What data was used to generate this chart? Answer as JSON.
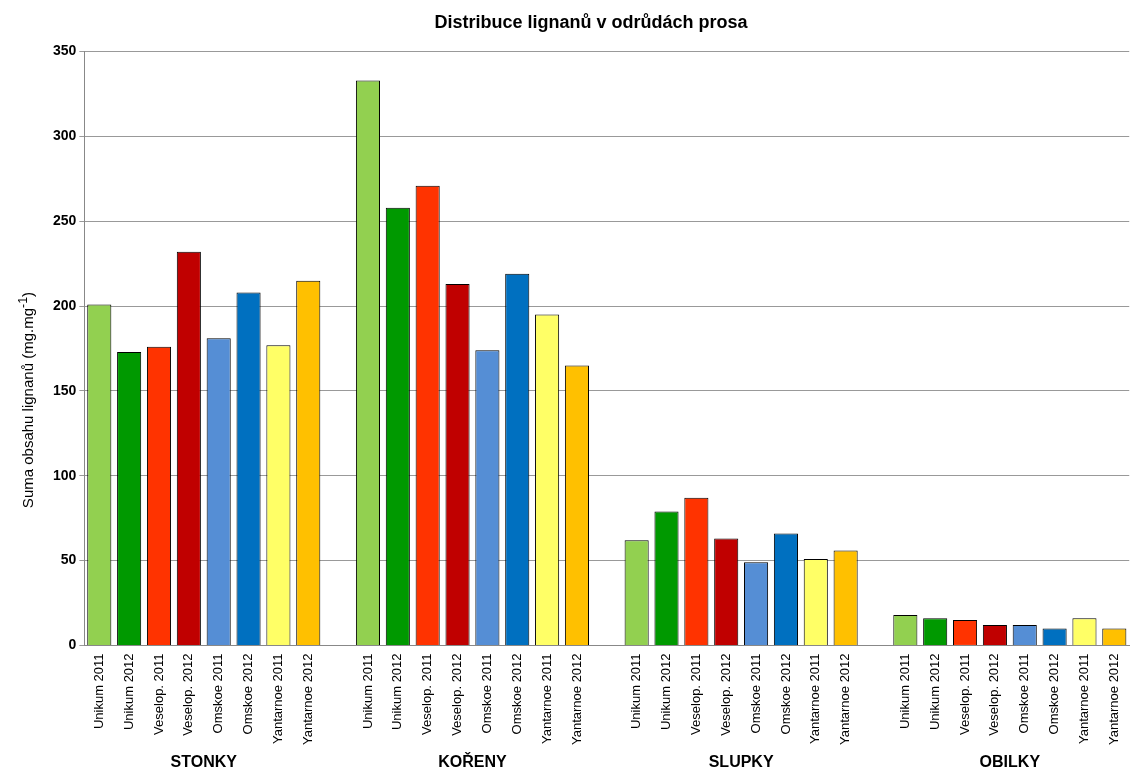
{
  "chart_data": {
    "type": "bar",
    "title": "Distribuce lignanů v odrůdách prosa",
    "ylabel": "Suma obsahu lignanů (mg.mg$^{-1}$)",
    "categories": [
      "Unikum 2011",
      "Unikum 2012",
      "Veselop. 2011",
      "Veselop. 2012",
      "Omskoe 2011",
      "Omskoe 2012",
      "Yantarnoe 2011",
      "Yantarnoe 2012",
      null,
      "Unikum 2011",
      "Unikum 2012",
      "Veselop. 2011",
      "Veselop. 2012",
      "Omskoe 2011",
      "Omskoe 2012",
      "Yantarnoe 2011",
      "Yantarnoe 2012",
      null,
      "Unikum 2011",
      "Unikum 2012",
      "Veselop. 2011",
      "Veselop. 2012",
      "Omskoe 2011",
      "Omskoe 2012",
      "Yantarnoe 2011",
      "Yantarnoe 2012",
      null,
      "Unikum 2011",
      "Unikum 2012",
      "Veselop. 2011",
      "Veselop. 2012",
      "Omskoe 2011",
      "Omskoe 2012",
      "Yantarnoe 2011",
      "Yantarnoe 2012"
    ],
    "values": [
      201,
      173,
      176,
      232,
      181,
      208,
      177,
      215,
      null,
      333,
      258,
      271,
      213,
      174,
      219,
      195,
      165,
      null,
      62,
      79,
      87,
      63,
      49,
      66,
      51,
      56,
      null,
      18,
      16,
      15,
      12,
      12,
      10,
      16,
      10
    ],
    "colors": [
      "#92d050",
      "#009900",
      "#ff3300",
      "#c00000",
      "#558ed5",
      "#0070c0",
      "#ffff66",
      "#ffc000",
      null,
      "#92d050",
      "#009900",
      "#ff3300",
      "#c00000",
      "#558ed5",
      "#0070c0",
      "#ffff66",
      "#ffc000",
      null,
      "#92d050",
      "#009900",
      "#ff3300",
      "#c00000",
      "#558ed5",
      "#0070c0",
      "#ffff66",
      "#ffc000",
      null,
      "#92d050",
      "#009900",
      "#ff3300",
      "#c00000",
      "#558ed5",
      "#0070c0",
      "#ffff66",
      "#ffc000"
    ],
    "ylim": [
      0,
      350
    ],
    "yticks": [
      0,
      50,
      100,
      150,
      200,
      250,
      300,
      350
    ],
    "grid": "y",
    "annotations": [
      "STONKY",
      "KOŘENY",
      "SLUPKY",
      "OBILKY"
    ]
  }
}
